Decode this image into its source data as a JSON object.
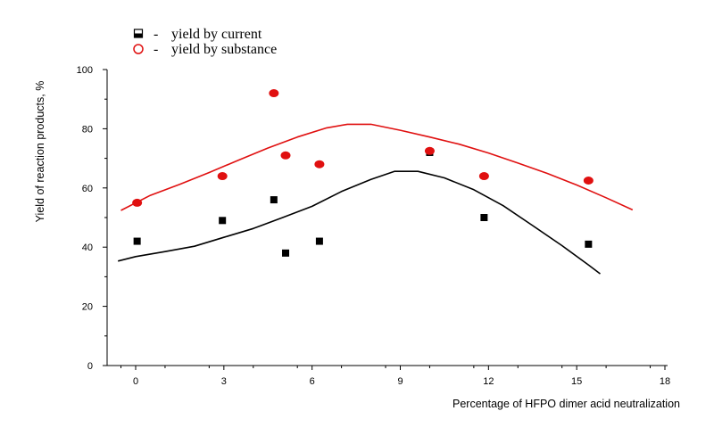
{
  "chart_data": {
    "type": "scatter",
    "title": "",
    "xlabel": "Percentage of HFPO dimer acid neutralization",
    "ylabel": "Yield of reaction products, %",
    "xlim": [
      -0.7,
      18
    ],
    "ylim": [
      0,
      100
    ],
    "x_ticks": [
      0,
      3,
      6,
      9,
      12,
      15,
      18
    ],
    "y_ticks": [
      0,
      20,
      40,
      60,
      80,
      100
    ],
    "grid": false,
    "legend_position": "top-left",
    "series": [
      {
        "name": "yield by current",
        "marker": "square",
        "color": "#000000",
        "points": [
          {
            "x": 0.05,
            "y": 42
          },
          {
            "x": 2.95,
            "y": 49
          },
          {
            "x": 4.7,
            "y": 56
          },
          {
            "x": 5.1,
            "y": 38
          },
          {
            "x": 6.25,
            "y": 42
          },
          {
            "x": 10.0,
            "y": 72
          },
          {
            "x": 11.85,
            "y": 50
          },
          {
            "x": 15.4,
            "y": 41
          }
        ],
        "fit_line": [
          [
            -0.6,
            35.3
          ],
          [
            0,
            36.8
          ],
          [
            1,
            38.5
          ],
          [
            2,
            40.3
          ],
          [
            3,
            43.3
          ],
          [
            4,
            46.3
          ],
          [
            5,
            50.0
          ],
          [
            6,
            53.8
          ],
          [
            7,
            58.8
          ],
          [
            8,
            62.9
          ],
          [
            8.8,
            65.6
          ],
          [
            9.6,
            65.6
          ],
          [
            10.5,
            63.4
          ],
          [
            11.5,
            59.4
          ],
          [
            12.5,
            54.0
          ],
          [
            13.5,
            47.3
          ],
          [
            14.5,
            40.5
          ],
          [
            15.4,
            34.0
          ],
          [
            15.8,
            31.0
          ]
        ]
      },
      {
        "name": "yield by substance",
        "marker": "circle",
        "color": "#e01010",
        "points": [
          {
            "x": 0.05,
            "y": 55
          },
          {
            "x": 2.95,
            "y": 64
          },
          {
            "x": 4.7,
            "y": 92
          },
          {
            "x": 5.1,
            "y": 71
          },
          {
            "x": 6.25,
            "y": 68
          },
          {
            "x": 10.0,
            "y": 72.5
          },
          {
            "x": 11.85,
            "y": 64
          },
          {
            "x": 15.4,
            "y": 62.5
          }
        ],
        "fit_line": [
          [
            -0.5,
            52.4
          ],
          [
            0.5,
            57.5
          ],
          [
            1.5,
            61.2
          ],
          [
            2.5,
            65.2
          ],
          [
            3.5,
            69.4
          ],
          [
            4.5,
            73.5
          ],
          [
            5.5,
            77.2
          ],
          [
            6.5,
            80.3
          ],
          [
            7.2,
            81.5
          ],
          [
            8.0,
            81.5
          ],
          [
            9.0,
            79.5
          ],
          [
            10.0,
            77.2
          ],
          [
            11.0,
            74.8
          ],
          [
            12.0,
            71.8
          ],
          [
            13.0,
            68.4
          ],
          [
            14.0,
            64.9
          ],
          [
            15.0,
            61.0
          ],
          [
            16.0,
            56.7
          ],
          [
            16.9,
            52.6
          ]
        ]
      }
    ]
  },
  "legend": {
    "items": [
      {
        "dash": "-",
        "label": "yield by current"
      },
      {
        "dash": "-",
        "label": "yield by substance"
      }
    ]
  }
}
